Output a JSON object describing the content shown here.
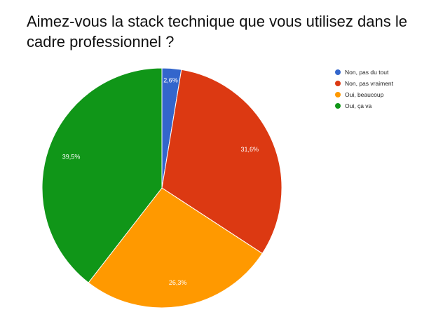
{
  "chart_data": {
    "type": "pie",
    "title": "Aimez-vous la stack technique que vous utilisez dans le cadre professionnel ?",
    "slices": [
      {
        "label": "Non, pas du tout",
        "value": 2.6,
        "display": "2,6%",
        "color": "#3366cc"
      },
      {
        "label": "Non, pas vraiment",
        "value": 31.6,
        "display": "31,6%",
        "color": "#dc3912"
      },
      {
        "label": "Oui, beaucoup",
        "value": 26.3,
        "display": "26,3%",
        "color": "#ff9900"
      },
      {
        "label": "Oui, ça va",
        "value": 39.5,
        "display": "39,5%",
        "color": "#109618"
      }
    ],
    "start_angle_deg": 0,
    "direction": "clockwise",
    "legend_position": "right"
  }
}
